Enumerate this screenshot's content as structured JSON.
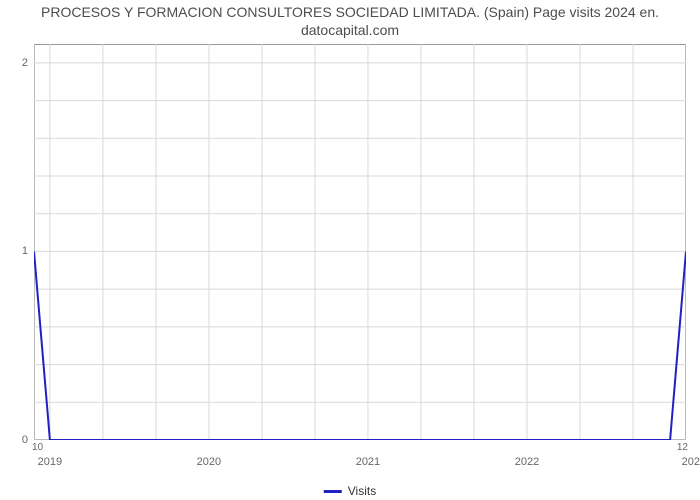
{
  "chart": {
    "type": "line",
    "title_line1": "PROCESOS Y FORMACION CONSULTORES SOCIEDAD LIMITADA. (Spain) Page visits 2024 en.",
    "title_line2": "datocapital.com",
    "title_fontsize": 14,
    "title_color": "#4d4d4d",
    "background_color": "#ffffff",
    "plot_border_color": "#999999",
    "grid_color": "#d9d9d9",
    "grid_major_color": "#d9d9d9",
    "axis_label_color": "#666666",
    "axis_label_fontsize": 11,
    "series": {
      "name": "Visits",
      "color": "#2021c4",
      "line_width": 2,
      "x": [
        2018.9,
        2019.0,
        2022.9,
        2023.0
      ],
      "y": [
        1.0,
        0.0,
        0.0,
        1.0
      ]
    },
    "x_axis": {
      "min": 2018.9,
      "max": 2023.0,
      "ticks": [
        2019,
        2020,
        2021,
        2022
      ],
      "tick_labels": [
        "2019",
        "2020",
        "2021",
        "2022"
      ],
      "minor_gridlines": [
        2018.9,
        2019.0,
        2019.3333,
        2019.6667,
        2020.0,
        2020.3333,
        2020.6667,
        2021.0,
        2021.3333,
        2021.6667,
        2022.0,
        2022.3333,
        2022.6667,
        2023.0
      ],
      "secondary_left_label": "10",
      "secondary_right_label": "12",
      "right_edge_label": "202"
    },
    "y_axis": {
      "min": 0,
      "max": 2.1,
      "ticks": [
        0,
        1,
        2
      ],
      "tick_labels": [
        "0",
        "1",
        "2"
      ],
      "minor_gridlines": [
        0,
        0.2,
        0.4,
        0.6,
        0.8,
        1.0,
        1.2,
        1.4,
        1.6,
        1.8,
        2.0
      ]
    },
    "legend": {
      "label": "Visits",
      "swatch_color": "#2021c4"
    }
  }
}
